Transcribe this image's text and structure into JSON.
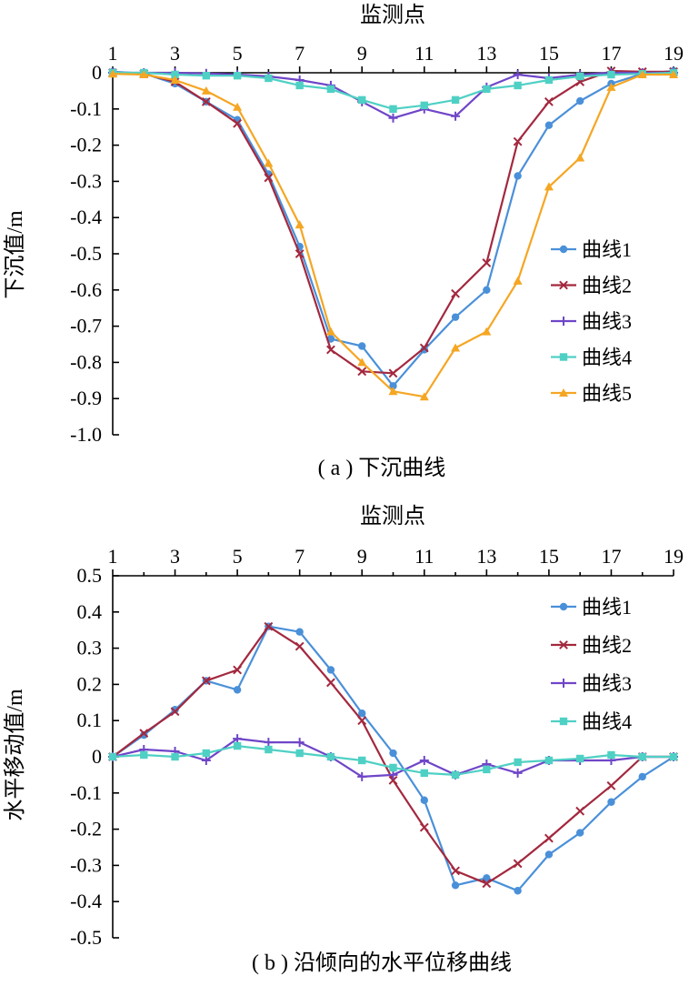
{
  "chart_data": [
    {
      "type": "line",
      "title": "",
      "caption": "( a ) 下沉曲线",
      "xlabel": "监测点",
      "ylabel": "下沉值/m",
      "x_ticks": [
        "1",
        "3",
        "5",
        "7",
        "9",
        "11",
        "13",
        "15",
        "17",
        "19"
      ],
      "y_ticks": [
        "0",
        "-0.1",
        "-0.2",
        "-0.3",
        "-0.4",
        "-0.5",
        "-0.6",
        "-0.7",
        "-0.8",
        "-0.9",
        "-1.0"
      ],
      "xlim": [
        1,
        19
      ],
      "ylim": [
        -1.0,
        0
      ],
      "x_axis_position": "top",
      "grid": false,
      "legend_position": "right",
      "x": [
        1,
        2,
        3,
        4,
        5,
        6,
        7,
        8,
        9,
        10,
        11,
        12,
        13,
        14,
        15,
        16,
        17,
        18,
        19
      ],
      "series": [
        {
          "name": "曲线1",
          "color": "#4a90d9",
          "marker": "circle",
          "values": [
            0.003,
            -0.002,
            -0.03,
            -0.08,
            -0.13,
            -0.28,
            -0.48,
            -0.735,
            -0.755,
            -0.865,
            -0.765,
            -0.675,
            -0.6,
            -0.285,
            -0.145,
            -0.078,
            -0.03,
            -0.003,
            0.005
          ]
        },
        {
          "name": "曲线2",
          "color": "#a3283e",
          "marker": "x",
          "values": [
            0.0,
            -0.003,
            -0.025,
            -0.08,
            -0.14,
            -0.29,
            -0.5,
            -0.765,
            -0.825,
            -0.83,
            -0.76,
            -0.61,
            -0.525,
            -0.19,
            -0.08,
            -0.025,
            0.005,
            0.003,
            0.003
          ]
        },
        {
          "name": "曲线3",
          "color": "#6f45c8",
          "marker": "plus",
          "values": [
            0.0,
            0.0,
            0.0,
            -0.002,
            -0.005,
            -0.01,
            -0.02,
            -0.035,
            -0.08,
            -0.125,
            -0.1,
            -0.12,
            -0.04,
            -0.005,
            -0.015,
            -0.005,
            0.0,
            0.0,
            0.0
          ]
        },
        {
          "name": "曲线4",
          "color": "#4fd0c4",
          "marker": "square",
          "values": [
            0.0,
            0.0,
            -0.005,
            -0.008,
            -0.008,
            -0.015,
            -0.035,
            -0.045,
            -0.075,
            -0.1,
            -0.09,
            -0.075,
            -0.045,
            -0.035,
            -0.02,
            -0.01,
            -0.005,
            -0.003,
            0.0
          ]
        },
        {
          "name": "曲线5",
          "color": "#f5a623",
          "marker": "triangle",
          "values": [
            -0.003,
            -0.005,
            -0.02,
            -0.05,
            -0.095,
            -0.25,
            -0.42,
            -0.715,
            -0.8,
            -0.88,
            -0.895,
            -0.76,
            -0.715,
            -0.575,
            -0.315,
            -0.235,
            -0.04,
            -0.005,
            -0.005
          ]
        }
      ]
    },
    {
      "type": "line",
      "title": "",
      "caption": "( b ) 沿倾向的水平位移曲线",
      "xlabel": "监测点",
      "ylabel": "水平移动值/m",
      "x_ticks": [
        "1",
        "3",
        "5",
        "7",
        "9",
        "11",
        "13",
        "15",
        "17",
        "19"
      ],
      "y_ticks": [
        "0.5",
        "0.4",
        "0.3",
        "0.2",
        "0.1",
        "0",
        "-0.1",
        "-0.2",
        "-0.3",
        "-0.4",
        "-0.5"
      ],
      "xlim": [
        1,
        19
      ],
      "ylim": [
        -0.5,
        0.5
      ],
      "x_axis_position": "top",
      "grid": false,
      "legend_position": "top-right",
      "x": [
        1,
        2,
        3,
        4,
        5,
        6,
        7,
        8,
        9,
        10,
        11,
        12,
        13,
        14,
        15,
        16,
        17,
        18,
        19
      ],
      "series": [
        {
          "name": "曲线1",
          "color": "#4a90d9",
          "marker": "circle",
          "values": [
            0.0,
            0.06,
            0.13,
            0.21,
            0.185,
            0.36,
            0.345,
            0.24,
            0.12,
            0.01,
            -0.12,
            -0.355,
            -0.335,
            -0.37,
            -0.27,
            -0.21,
            -0.125,
            -0.055,
            0.0
          ]
        },
        {
          "name": "曲线2",
          "color": "#a3283e",
          "marker": "x",
          "values": [
            0.0,
            0.065,
            0.125,
            0.21,
            0.24,
            0.36,
            0.305,
            0.205,
            0.1,
            -0.065,
            -0.195,
            -0.315,
            -0.35,
            -0.295,
            -0.225,
            -0.15,
            -0.08,
            0.0,
            0.0
          ]
        },
        {
          "name": "曲线3",
          "color": "#6f45c8",
          "marker": "plus",
          "values": [
            0.0,
            0.02,
            0.015,
            -0.01,
            0.05,
            0.04,
            0.04,
            0.0,
            -0.055,
            -0.05,
            -0.01,
            -0.05,
            -0.02,
            -0.045,
            -0.01,
            -0.01,
            -0.01,
            0.0,
            0.0
          ]
        },
        {
          "name": "曲线4",
          "color": "#4fd0c4",
          "marker": "square",
          "values": [
            0.0,
            0.005,
            0.0,
            0.01,
            0.03,
            0.02,
            0.01,
            0.0,
            -0.01,
            -0.03,
            -0.045,
            -0.05,
            -0.035,
            -0.015,
            -0.01,
            -0.005,
            0.005,
            0.0,
            0.0
          ]
        }
      ]
    }
  ]
}
